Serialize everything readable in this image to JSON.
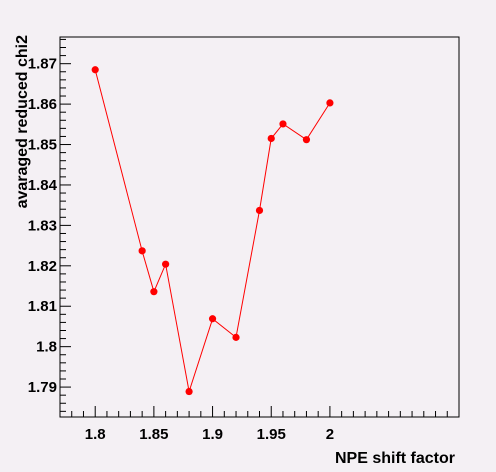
{
  "chart_data": {
    "type": "line",
    "title": "",
    "xlabel": "NPE shift factor",
    "ylabel": "avaraged reduced chi2",
    "xlim": [
      1.77,
      2.11
    ],
    "ylim": [
      1.7826,
      1.8766
    ],
    "x_ticks": [
      1.8,
      1.85,
      1.9,
      1.95,
      2.0
    ],
    "x_tick_labels": [
      "1.8",
      "1.85",
      "1.9",
      "1.95",
      "2"
    ],
    "y_ticks": [
      1.79,
      1.8,
      1.81,
      1.82,
      1.83,
      1.84,
      1.85,
      1.86,
      1.87
    ],
    "y_tick_labels": [
      "1.79",
      "1.8",
      "1.81",
      "1.82",
      "1.83",
      "1.84",
      "1.85",
      "1.86",
      "1.87"
    ],
    "grid": false,
    "legend": "none",
    "series": [
      {
        "color": "#ff0000",
        "points": [
          {
            "x": 1.8,
            "y": 1.8685
          },
          {
            "x": 1.84,
            "y": 1.8237
          },
          {
            "x": 1.85,
            "y": 1.8136
          },
          {
            "x": 1.86,
            "y": 1.8204
          },
          {
            "x": 1.88,
            "y": 1.7889
          },
          {
            "x": 1.9,
            "y": 1.8069
          },
          {
            "x": 1.92,
            "y": 1.8023
          },
          {
            "x": 1.94,
            "y": 1.8337
          },
          {
            "x": 1.95,
            "y": 1.8515
          },
          {
            "x": 1.96,
            "y": 1.8551
          },
          {
            "x": 1.98,
            "y": 1.8512
          },
          {
            "x": 2.0,
            "y": 1.8603
          }
        ]
      }
    ]
  }
}
